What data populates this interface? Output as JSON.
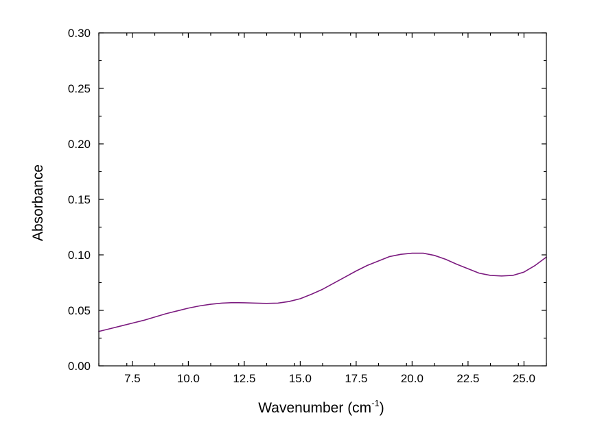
{
  "chart_data": {
    "type": "line",
    "xlabel": "Wavenumber (cm",
    "xlabel_superscript": "-1",
    "xlabel_suffix": ")",
    "ylabel": "Absorbance",
    "xlim": [
      6.0,
      26.0
    ],
    "ylim": [
      0.0,
      0.3
    ],
    "x_ticks": [
      "7.5",
      "10.0",
      "12.5",
      "15.0",
      "17.5",
      "20.0",
      "22.5",
      "25.0"
    ],
    "y_ticks": [
      "0.00",
      "0.05",
      "0.10",
      "0.15",
      "0.20",
      "0.25",
      "0.30"
    ],
    "grid": false,
    "series": [
      {
        "color": "#7b1a7f",
        "x": [
          6.0,
          6.5,
          7.0,
          7.5,
          8.0,
          8.5,
          9.0,
          9.5,
          10.0,
          10.5,
          11.0,
          11.5,
          12.0,
          12.5,
          13.0,
          13.5,
          14.0,
          14.5,
          15.0,
          15.5,
          16.0,
          16.5,
          17.0,
          17.5,
          18.0,
          18.5,
          19.0,
          19.5,
          20.0,
          20.5,
          21.0,
          21.5,
          22.0,
          22.5,
          23.0,
          23.5,
          24.0,
          24.5,
          25.0,
          25.5,
          26.0
        ],
        "y": [
          0.031,
          0.0335,
          0.036,
          0.0385,
          0.041,
          0.044,
          0.047,
          0.0495,
          0.052,
          0.054,
          0.0555,
          0.0565,
          0.057,
          0.0568,
          0.0565,
          0.0563,
          0.0565,
          0.058,
          0.0605,
          0.0645,
          0.069,
          0.0745,
          0.08,
          0.0855,
          0.0905,
          0.0945,
          0.0985,
          0.1005,
          0.1015,
          0.1015,
          0.0995,
          0.096,
          0.0915,
          0.0875,
          0.0835,
          0.0815,
          0.081,
          0.0815,
          0.0845,
          0.0905,
          0.098
        ]
      }
    ]
  }
}
